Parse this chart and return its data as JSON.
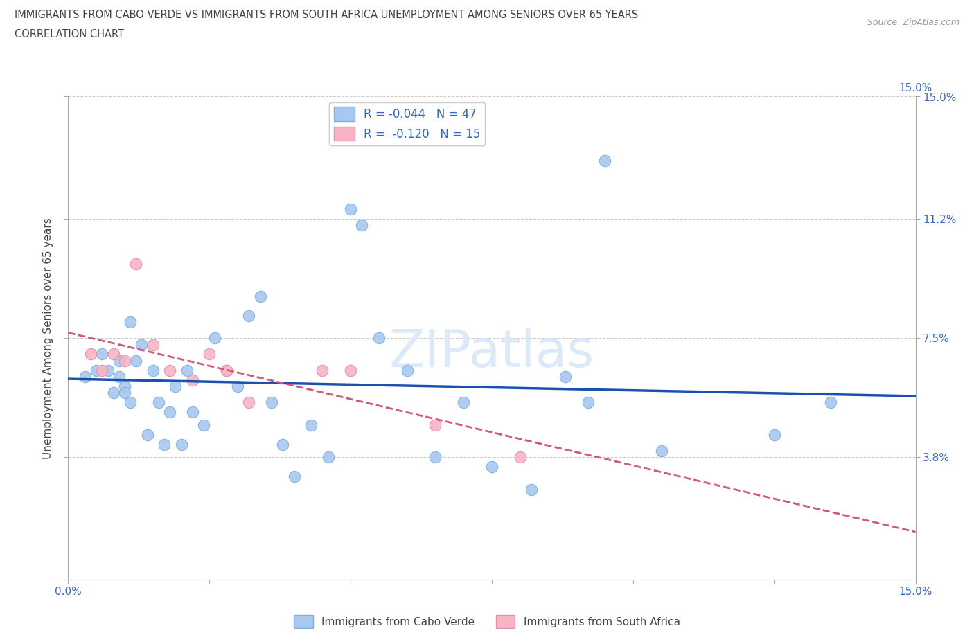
{
  "title_line1": "IMMIGRANTS FROM CABO VERDE VS IMMIGRANTS FROM SOUTH AFRICA UNEMPLOYMENT AMONG SENIORS OVER 65 YEARS",
  "title_line2": "CORRELATION CHART",
  "source_text": "Source: ZipAtlas.com",
  "ylabel": "Unemployment Among Seniors over 65 years",
  "xmin": 0.0,
  "xmax": 0.15,
  "ymin": 0.0,
  "ymax": 0.15,
  "R_cabo": -0.044,
  "N_cabo": 47,
  "R_south": -0.12,
  "N_south": 15,
  "color_cabo": "#a8c8f0",
  "color_south": "#f8b4c4",
  "edge_cabo": "#7ab0e0",
  "edge_south": "#e090a8",
  "line_color_cabo": "#1a50b0",
  "line_color_south": "#d05878",
  "tick_color": "#3366cc",
  "watermark": "ZIPatlas",
  "legend_entries": [
    "Immigrants from Cabo Verde",
    "Immigrants from South Africa"
  ],
  "cabo_x": [
    0.003,
    0.005,
    0.006,
    0.007,
    0.008,
    0.009,
    0.009,
    0.01,
    0.01,
    0.011,
    0.011,
    0.012,
    0.013,
    0.014,
    0.015,
    0.016,
    0.017,
    0.018,
    0.019,
    0.02,
    0.021,
    0.022,
    0.024,
    0.026,
    0.028,
    0.03,
    0.032,
    0.034,
    0.036,
    0.038,
    0.04,
    0.043,
    0.046,
    0.05,
    0.052,
    0.055,
    0.06,
    0.065,
    0.07,
    0.075,
    0.082,
    0.088,
    0.092,
    0.095,
    0.105,
    0.125,
    0.135
  ],
  "cabo_y": [
    0.063,
    0.065,
    0.07,
    0.065,
    0.058,
    0.068,
    0.063,
    0.06,
    0.058,
    0.055,
    0.08,
    0.068,
    0.073,
    0.045,
    0.065,
    0.055,
    0.042,
    0.052,
    0.06,
    0.042,
    0.065,
    0.052,
    0.048,
    0.075,
    0.065,
    0.06,
    0.082,
    0.088,
    0.055,
    0.042,
    0.032,
    0.048,
    0.038,
    0.115,
    0.11,
    0.075,
    0.065,
    0.038,
    0.055,
    0.035,
    0.028,
    0.063,
    0.055,
    0.13,
    0.04,
    0.045,
    0.055
  ],
  "south_x": [
    0.004,
    0.006,
    0.008,
    0.01,
    0.012,
    0.015,
    0.018,
    0.022,
    0.025,
    0.028,
    0.032,
    0.045,
    0.05,
    0.065,
    0.08
  ],
  "south_y": [
    0.07,
    0.065,
    0.07,
    0.068,
    0.098,
    0.073,
    0.065,
    0.062,
    0.07,
    0.065,
    0.055,
    0.065,
    0.065,
    0.048,
    0.038
  ]
}
